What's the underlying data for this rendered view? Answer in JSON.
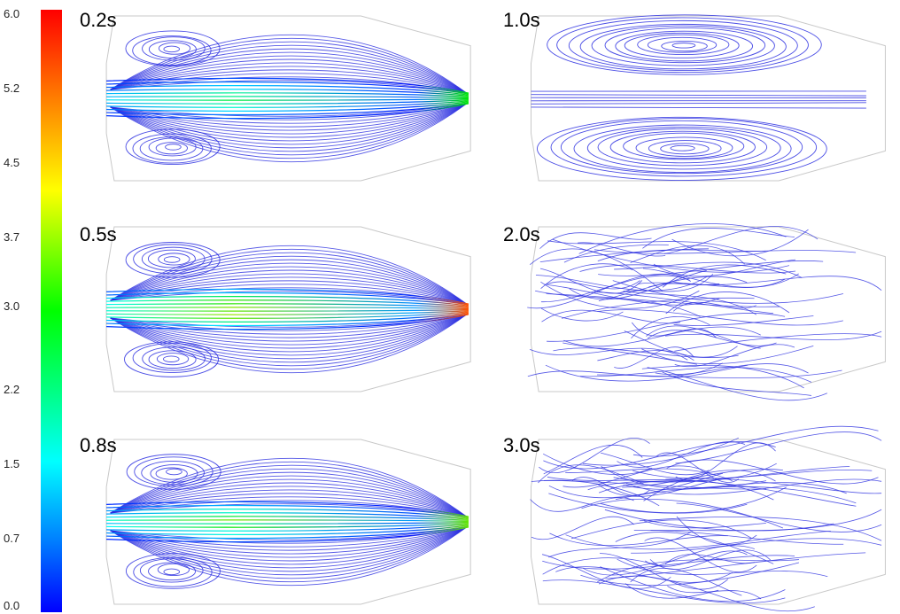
{
  "colorbar": {
    "ticks": [
      "6.0",
      "5.2",
      "4.5",
      "3.7",
      "3.0",
      "2.2",
      "1.5",
      "0.7",
      "0.0"
    ],
    "colors": [
      "#0000ff",
      "#00ffff",
      "#00ff00",
      "#ffff00",
      "#ff0000"
    ]
  },
  "panels": [
    {
      "label": "0.2s",
      "pattern": "jet-with-vortices",
      "jet_strength": 0.55
    },
    {
      "label": "1.0s",
      "pattern": "two-vortices",
      "jet_strength": 0.05
    },
    {
      "label": "0.5s",
      "pattern": "jet-with-vortices",
      "jet_strength": 1.0
    },
    {
      "label": "2.0s",
      "pattern": "disordered",
      "jet_strength": 0.0
    },
    {
      "label": "0.8s",
      "pattern": "jet-with-vortices",
      "jet_strength": 0.65
    },
    {
      "label": "3.0s",
      "pattern": "disordered",
      "jet_strength": 0.0
    }
  ]
}
